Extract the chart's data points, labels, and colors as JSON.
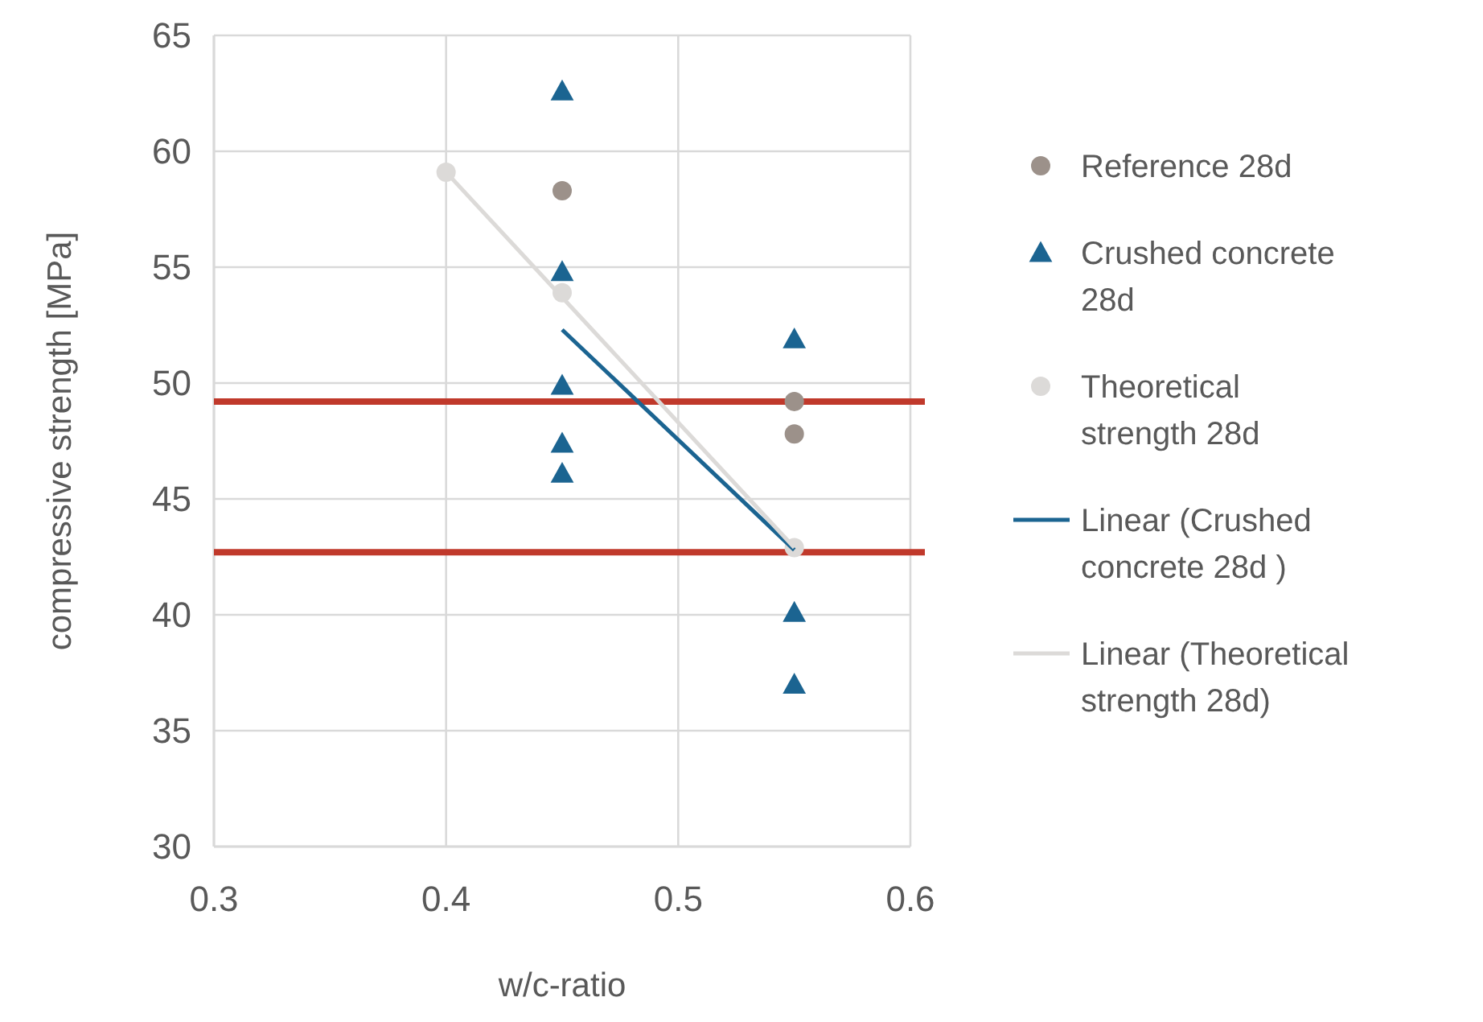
{
  "chart_data": {
    "type": "scatter",
    "xlabel": "w/c-ratio",
    "ylabel": "compressive strength [MPa]",
    "xlim": [
      0.3,
      0.6
    ],
    "xticks": [
      0.3,
      0.4,
      0.5,
      0.6
    ],
    "ylim": [
      30,
      65
    ],
    "yticks": [
      30,
      35,
      40,
      45,
      50,
      55,
      60,
      65
    ],
    "grid": true,
    "legend": "right",
    "series": [
      {
        "name": "Reference 28d",
        "marker": "circle",
        "color": "#9c918a",
        "x": [
          0.45,
          0.55,
          0.55
        ],
        "values": [
          58.3,
          49.2,
          47.8
        ]
      },
      {
        "name": "Crushed concrete 28d",
        "marker": "triangle",
        "color": "#1b6491",
        "x": [
          0.45,
          0.45,
          0.45,
          0.45,
          0.45,
          0.55,
          0.55,
          0.55
        ],
        "values": [
          62.6,
          54.8,
          49.9,
          47.4,
          46.1,
          51.9,
          40.1,
          37.0
        ]
      },
      {
        "name": "Theoretical strength 28d",
        "marker": "circle",
        "color": "#dcdad8",
        "x": [
          0.4,
          0.45,
          0.55
        ],
        "values": [
          59.1,
          53.9,
          42.9
        ]
      },
      {
        "name": "Linear (Crushed concrete 28d )",
        "type": "line",
        "marker": "none",
        "color": "#1b6491",
        "x": [
          0.45,
          0.55
        ],
        "values": [
          52.3,
          42.8
        ]
      },
      {
        "name": "Linear (Theoretical strength 28d)",
        "type": "line",
        "marker": "none",
        "color": "#dcdad8",
        "x": [
          0.4,
          0.55
        ],
        "values": [
          59.1,
          42.9
        ]
      }
    ],
    "ref_lines": [
      {
        "axis": "y",
        "value": 49.2,
        "color": "#c0392b"
      },
      {
        "axis": "y",
        "value": 42.7,
        "color": "#c0392b"
      }
    ]
  }
}
